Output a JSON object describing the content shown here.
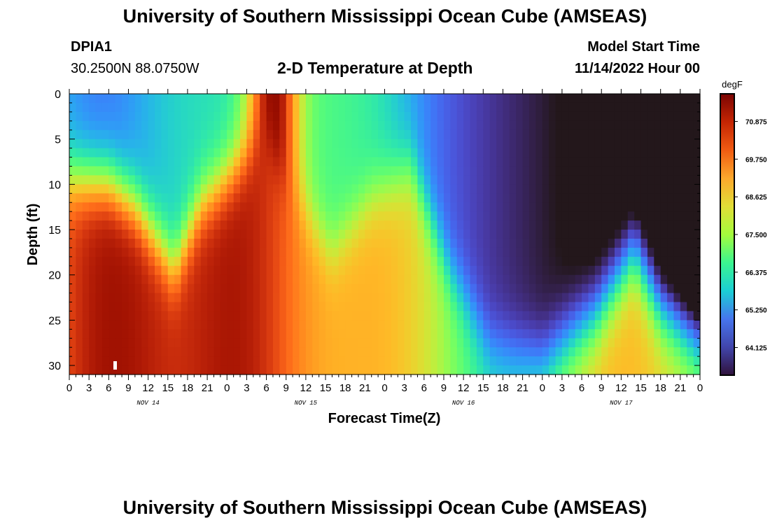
{
  "header": {
    "title": "University of Southern Mississippi Ocean Cube (AMSEAS)",
    "station_id": "DPIA1",
    "station_coords": "30.2500N  88.0750W",
    "chart_title": "2-D Temperature at Depth",
    "model_start_label": "Model Start Time",
    "model_start_value": "11/14/2022 Hour 00"
  },
  "footer": {
    "title": "University of Southern Mississippi Ocean Cube (AMSEAS)"
  },
  "chart_data": {
    "type": "heatmap",
    "title": "2-D Temperature at Depth",
    "xlabel": "Forecast Time(Z)",
    "ylabel": "Depth (ft)",
    "x_tick_labels": [
      "0",
      "3",
      "6",
      "9",
      "12",
      "15",
      "18",
      "21",
      "0",
      "3",
      "6",
      "9",
      "12",
      "15",
      "18",
      "21",
      "0",
      "3",
      "6",
      "9",
      "12",
      "15",
      "18",
      "21",
      "0",
      "3",
      "6",
      "9",
      "12",
      "15",
      "18",
      "21",
      "0"
    ],
    "day_labels": [
      {
        "label": "NOV 14",
        "hour": 12
      },
      {
        "label": "NOV 15",
        "hour": 36
      },
      {
        "label": "NOV 16",
        "hour": 60
      },
      {
        "label": "NOV 17",
        "hour": 84
      }
    ],
    "xlim_hours": [
      0,
      96
    ],
    "ylim_ft": [
      0,
      31
    ],
    "y_ticks": [
      0,
      5,
      10,
      15,
      20,
      25,
      30
    ],
    "y_inverted": true,
    "colorbar": {
      "unit": "degF",
      "ticks": [
        70.875,
        69.75,
        68.625,
        67.5,
        66.375,
        65.25,
        64.125
      ],
      "tick_labels": [
        "70.875",
        "69.750",
        "68.625",
        "67.500",
        "66.375",
        "65.250",
        "64.125"
      ],
      "range": [
        63.3,
        71.7
      ]
    },
    "field_description": {
      "min_degF": 63.3,
      "max_degF": 71.4,
      "warm_bottom_peaks_hours": [
        6,
        26,
        48,
        84
      ],
      "cold_surface_regions_hours": [
        5,
        62,
        92
      ]
    }
  }
}
